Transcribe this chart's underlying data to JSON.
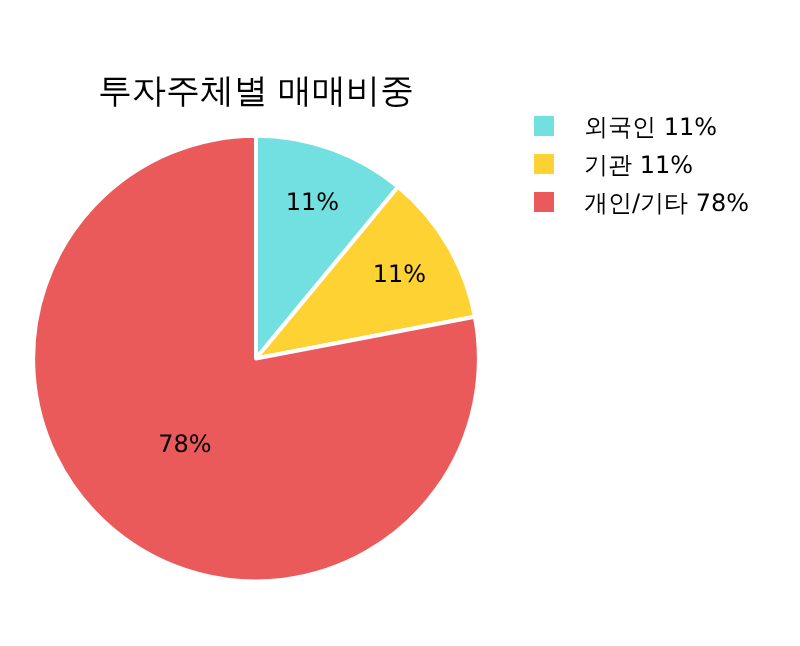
{
  "chart_data": {
    "type": "pie",
    "title": "투자주체별 매매비중",
    "categories": [
      "외국인 11%",
      "기관 11%",
      "개인/기타 78%"
    ],
    "values": [
      11,
      11,
      78
    ],
    "colors": [
      "#72e0e0",
      "#ffd233",
      "#eb5a5a"
    ],
    "value_labels": [
      "11%",
      "11%",
      "78%"
    ],
    "legend": "top right"
  }
}
